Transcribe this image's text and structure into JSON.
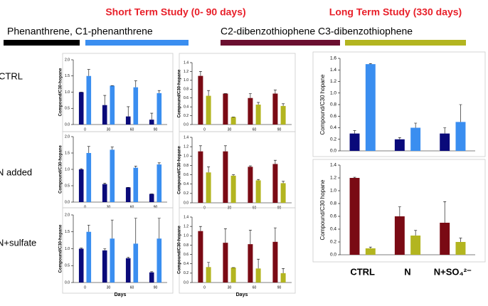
{
  "headings": [
    "Short Term Study (0- 90 days)",
    "Long Term Study (330 days)"
  ],
  "legend": {
    "texts": [
      "Phenanthrene, C1-phenanthrene",
      "C2-dibenzothiophene C3-dibenzothiophene"
    ],
    "swatches": [
      "#000000",
      "#3a8ef0",
      "#6b0f30",
      "#b3b520"
    ]
  },
  "row_labels": [
    "CTRL",
    "N added",
    "N+sulfate"
  ],
  "chart_data": [
    {
      "type": "bar",
      "ylabel": "Compound/C30-hopane",
      "categories": [
        "0",
        "30",
        "60",
        "90"
      ],
      "ylim": [
        0,
        2
      ],
      "yticks": [
        {
          "value": 0,
          "label": "0.0"
        },
        0.5,
        {
          "value": 1,
          "label": "1.0"
        },
        1.5,
        {
          "value": 2,
          "label": "2.0"
        }
      ],
      "series": [
        {
          "color": "#0a0a7a",
          "values": [
            1.0,
            0.6,
            0.25,
            0.15
          ],
          "errors": [
            0.0,
            0.3,
            0.3,
            0.2
          ]
        },
        {
          "color": "#3a8ef0",
          "values": [
            1.5,
            1.2,
            1.15,
            0.97
          ],
          "errors": [
            0.2,
            0.0,
            0.2,
            0.08
          ]
        }
      ]
    },
    {
      "type": "bar",
      "ylabel": "Compound/C30-hopane",
      "categories": [
        "0",
        "30",
        "60",
        "90"
      ],
      "ylim": [
        0,
        1.4
      ],
      "yticks": [
        {
          "value": 0,
          "label": "0.0"
        },
        0.2,
        0.4,
        0.6,
        0.8,
        {
          "value": 1,
          "label": "1.0"
        },
        1.2,
        1.4
      ],
      "series": [
        {
          "color": "#7a0a14",
          "values": [
            1.1,
            0.7,
            0.6,
            0.7
          ],
          "errors": [
            0.1,
            0.0,
            0.1,
            0.08
          ]
        },
        {
          "color": "#b3b520",
          "values": [
            0.65,
            0.17,
            0.45,
            0.42
          ],
          "errors": [
            0.12,
            0.0,
            0.05,
            0.05
          ]
        }
      ]
    },
    {
      "type": "bar",
      "ylabel": "Compound/C30-hopane",
      "categories": [
        "0",
        "30",
        "60",
        "90"
      ],
      "ylim": [
        0,
        2
      ],
      "yticks": [
        {
          "value": 0,
          "label": "0.0"
        },
        0.5,
        {
          "value": 1,
          "label": "1.0"
        },
        1.5,
        {
          "value": 2,
          "label": "2.0"
        }
      ],
      "series": [
        {
          "color": "#0a0a7a",
          "values": [
            1.0,
            0.55,
            0.45,
            0.25
          ],
          "errors": [
            0.02,
            0.03,
            0.0,
            0.0
          ]
        },
        {
          "color": "#3a8ef0",
          "values": [
            1.5,
            1.6,
            1.05,
            1.15
          ],
          "errors": [
            0.2,
            0.08,
            0.05,
            0.05
          ]
        }
      ]
    },
    {
      "type": "bar",
      "ylabel": "Compound/C30-hopane",
      "categories": [
        "0",
        "30",
        "60",
        "90"
      ],
      "ylim": [
        0,
        1.4
      ],
      "yticks": [
        {
          "value": 0,
          "label": "0.0"
        },
        0.2,
        0.4,
        0.6,
        0.8,
        {
          "value": 1,
          "label": "1.0"
        },
        1.2,
        1.4
      ],
      "series": [
        {
          "color": "#7a0a14",
          "values": [
            1.1,
            1.1,
            0.77,
            0.83
          ],
          "errors": [
            0.12,
            0.12,
            0.02,
            0.08
          ]
        },
        {
          "color": "#b3b520",
          "values": [
            0.65,
            0.58,
            0.48,
            0.42
          ],
          "errors": [
            0.12,
            0.02,
            0.02,
            0.04
          ]
        }
      ]
    },
    {
      "type": "bar",
      "ylabel": "Compound/C30-hopane",
      "xlabel": "Days",
      "categories": [
        "0",
        "30",
        "60",
        "90"
      ],
      "ylim": [
        0,
        2
      ],
      "yticks": [
        {
          "value": 0,
          "label": "0.0"
        },
        0.5,
        {
          "value": 1,
          "label": "1.0"
        },
        1.5,
        {
          "value": 2,
          "label": "2.0"
        }
      ],
      "series": [
        {
          "color": "#0a0a7a",
          "values": [
            1.0,
            0.95,
            0.72,
            0.3
          ],
          "errors": [
            0.02,
            0.05,
            0.03,
            0.02
          ]
        },
        {
          "color": "#3a8ef0",
          "values": [
            1.5,
            1.3,
            1.15,
            1.3
          ],
          "errors": [
            0.2,
            0.55,
            0.75,
            0.6
          ]
        }
      ]
    },
    {
      "type": "bar",
      "ylabel": "Compound/C30-hopane",
      "xlabel": "Days",
      "categories": [
        "0",
        "30",
        "60",
        "90"
      ],
      "ylim": [
        0,
        1.4
      ],
      "yticks": [
        {
          "value": 0,
          "label": "0.0"
        },
        0.2,
        0.4,
        0.6,
        0.8,
        {
          "value": 1,
          "label": "1.0"
        },
        1.2,
        1.4
      ],
      "series": [
        {
          "color": "#7a0a14",
          "values": [
            1.1,
            0.85,
            0.82,
            0.87
          ],
          "errors": [
            0.1,
            0.3,
            0.3,
            0.3
          ]
        },
        {
          "color": "#b3b520",
          "values": [
            0.33,
            0.32,
            0.3,
            0.2
          ],
          "errors": [
            0.1,
            0.0,
            0.2,
            0.1
          ]
        }
      ]
    },
    {
      "type": "bar",
      "ylabel": "Compound/C30 hopane",
      "ylim": [
        0,
        1.6
      ],
      "yticks": [
        {
          "value": 0,
          "label": "0.0"
        },
        0.2,
        0.4,
        0.6,
        0.8,
        {
          "value": 1,
          "label": "1.0"
        },
        1.2,
        1.4,
        1.6
      ],
      "series": [
        {
          "color": "#0a0a7a",
          "values": [
            0.3,
            0.2,
            0.3
          ],
          "errors": [
            0.05,
            0.03,
            0.1
          ]
        },
        {
          "color": "#3a8ef0",
          "values": [
            1.5,
            0.4,
            0.5
          ],
          "errors": [
            0.01,
            0.08,
            0.3
          ]
        }
      ]
    },
    {
      "type": "bar",
      "ylabel": "Compound/C30 hopane",
      "categories": [
        "CTRL",
        "N",
        "N+SO₄²⁻"
      ],
      "ylim": [
        0,
        1.4
      ],
      "yticks": [
        {
          "value": 0,
          "label": "0.0"
        },
        0.2,
        0.4,
        0.6,
        0.8,
        {
          "value": 1,
          "label": "1.0"
        },
        1.2,
        1.4
      ],
      "series": [
        {
          "color": "#7a0a14",
          "values": [
            1.2,
            0.6,
            0.5
          ],
          "errors": [
            0.01,
            0.15,
            0.33
          ]
        },
        {
          "color": "#b3b520",
          "values": [
            0.1,
            0.3,
            0.2
          ],
          "errors": [
            0.02,
            0.08,
            0.06
          ]
        }
      ]
    }
  ]
}
